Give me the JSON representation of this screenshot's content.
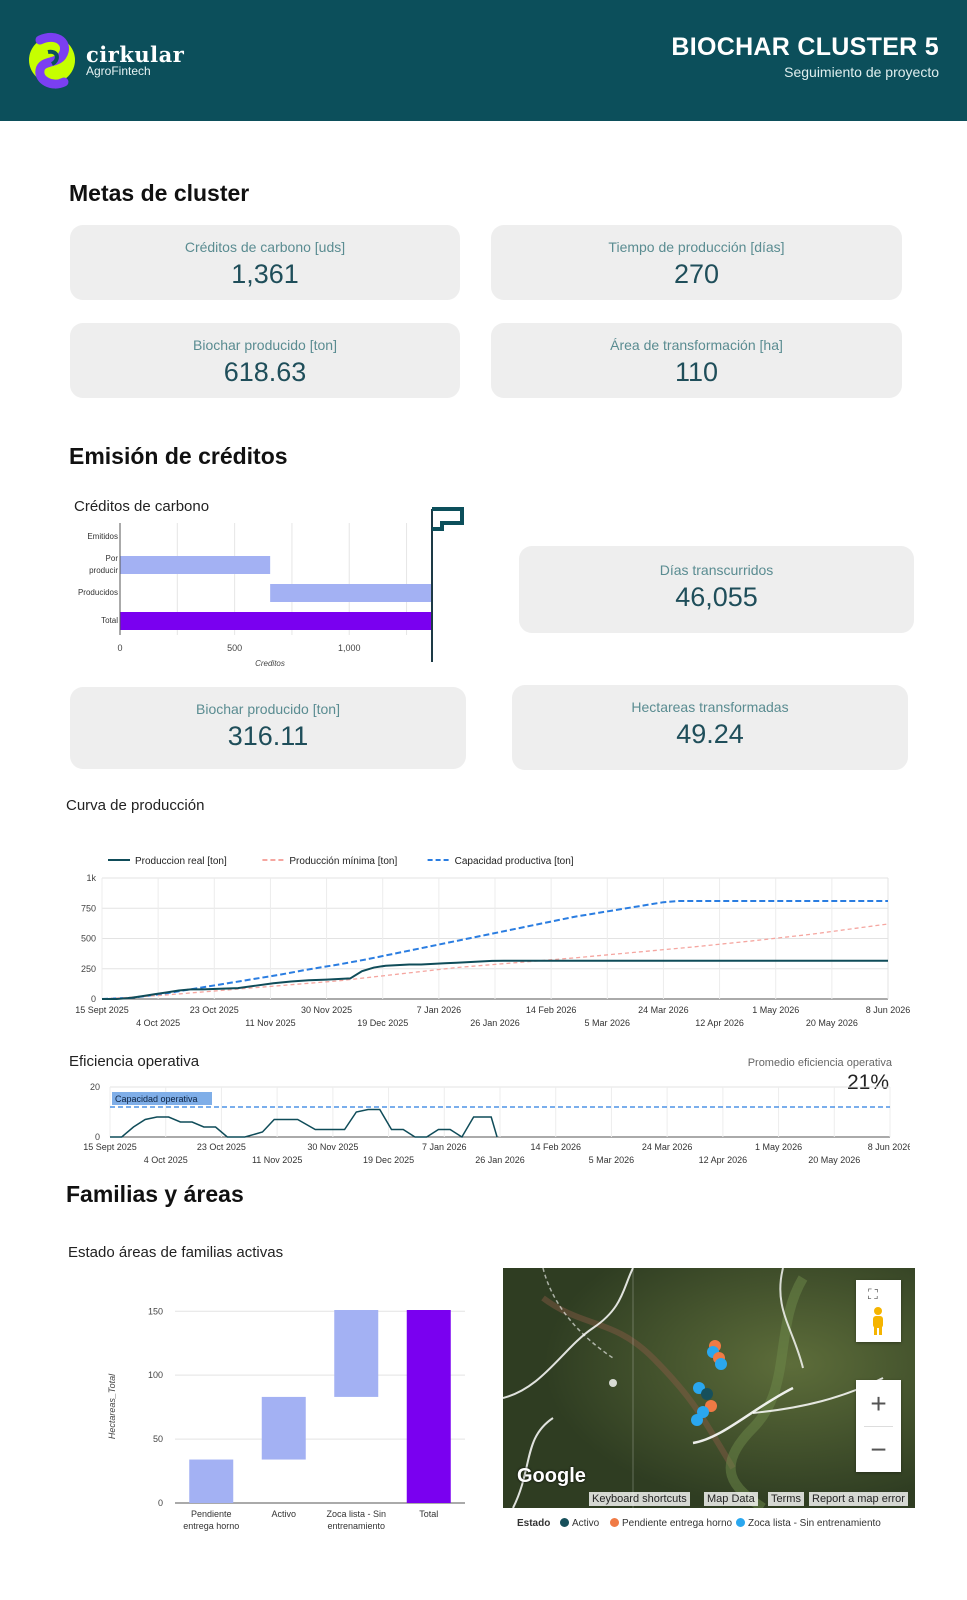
{
  "header": {
    "brand": "cirkular",
    "brand_sub": "AgroFintech",
    "title": "BIOCHAR CLUSTER 5",
    "subtitle": "Seguimiento de proyecto",
    "colors": {
      "bar": "#0c4f5b",
      "logo_green": "#c6ff00",
      "logo_purple": "#7b3ff2"
    }
  },
  "metas": {
    "title": "Metas de cluster",
    "cards": [
      {
        "label": "Créditos de carbono [uds]",
        "value": "1,361"
      },
      {
        "label": "Tiempo de producción [días]",
        "value": "270"
      },
      {
        "label": "Biochar producido [ton]",
        "value": "618.63"
      },
      {
        "label": "Área de transformación [ha]",
        "value": "110"
      }
    ]
  },
  "emision": {
    "title": "Emisión de créditos",
    "chart_title": "Créditos de carbono",
    "cards": [
      {
        "label": "Días transcurridos",
        "value": "46,055"
      },
      {
        "label": "Biochar producido [ton]",
        "value": "316.11"
      },
      {
        "label": "Hectareas transformadas",
        "value": "49.24"
      }
    ],
    "flag_icon": "flag-icon"
  },
  "produccion": {
    "title": "Curva de producción"
  },
  "eficiencia": {
    "title": "Eficiencia operativa",
    "kpi_label": "Promedio eficiencia operativa",
    "kpi_value": "21%"
  },
  "familias": {
    "title": "Familias y áreas",
    "chart_title": "Estado áreas de familias activas",
    "map": {
      "brand": "Google",
      "links": [
        "Keyboard shortcuts",
        "Map Data",
        "Terms",
        "Report a map error"
      ],
      "zoom_in": "+",
      "zoom_out": "−",
      "fullscreen_icon": "fullscreen-icon",
      "pegman_icon": "pegman-icon"
    },
    "legend": {
      "title": "Estado",
      "items": [
        {
          "label": "Activo",
          "color": "#17505b"
        },
        {
          "label": "Pendiente entrega horno",
          "color": "#f07a45"
        },
        {
          "label": "Zoca lista - Sin entrenamiento",
          "color": "#2aa7ef"
        }
      ]
    }
  },
  "chart_data": [
    {
      "type": "bar",
      "orientation": "horizontal",
      "title": "Créditos de carbono",
      "categories": [
        "Emitidos",
        "Por producir",
        "Producidos",
        "Total"
      ],
      "series": [
        {
          "name": "start",
          "values": [
            0,
            0,
            655,
            0
          ]
        },
        {
          "name": "end",
          "values": [
            0,
            655,
            1361,
            1361
          ]
        }
      ],
      "colors": [
        "#a3b1f3",
        "#a3b1f3",
        "#a3b1f3",
        "#7a00f0"
      ],
      "xlabel": "Creditos",
      "xlim": [
        0,
        1361
      ],
      "xticks": [
        "0",
        "500",
        "1,000"
      ],
      "target_marker": 1361
    },
    {
      "type": "line",
      "title": "Curva de producción",
      "ylim": [
        0,
        1000
      ],
      "yticks": [
        "0",
        "250",
        "500",
        "750",
        "1k"
      ],
      "xlim": [
        0,
        266
      ],
      "xticks": [
        {
          "d": 0,
          "label": "15 Sept 2025",
          "row": 1
        },
        {
          "d": 19,
          "label": "4 Oct 2025",
          "row": 2
        },
        {
          "d": 38,
          "label": "23 Oct 2025",
          "row": 1
        },
        {
          "d": 57,
          "label": "11 Nov 2025",
          "row": 2
        },
        {
          "d": 76,
          "label": "30 Nov 2025",
          "row": 1
        },
        {
          "d": 95,
          "label": "19 Dec 2025",
          "row": 2
        },
        {
          "d": 114,
          "label": "7 Jan 2026",
          "row": 1
        },
        {
          "d": 133,
          "label": "26 Jan 2026",
          "row": 2
        },
        {
          "d": 152,
          "label": "14 Feb 2026",
          "row": 1
        },
        {
          "d": 171,
          "label": "5 Mar 2026",
          "row": 2
        },
        {
          "d": 190,
          "label": "24 Mar 2026",
          "row": 1
        },
        {
          "d": 209,
          "label": "12 Apr 2026",
          "row": 2
        },
        {
          "d": 228,
          "label": "1 May 2026",
          "row": 1
        },
        {
          "d": 247,
          "label": "20 May 2026",
          "row": 2
        },
        {
          "d": 266,
          "label": "8 Jun 2026",
          "row": 1
        }
      ],
      "series": [
        {
          "name": "Produccion real [ton]",
          "color": "#0f4c59",
          "style": "solid",
          "x": [
            0,
            5,
            10,
            14,
            18,
            22,
            26,
            30,
            34,
            40,
            46,
            52,
            58,
            64,
            70,
            76,
            80,
            84,
            88,
            92,
            96,
            100,
            104,
            108,
            112,
            116,
            120,
            124,
            128,
            132,
            136,
            140,
            266
          ],
          "y": [
            0,
            0,
            10,
            25,
            40,
            55,
            70,
            80,
            80,
            85,
            90,
            110,
            130,
            145,
            155,
            160,
            165,
            170,
            230,
            260,
            275,
            280,
            285,
            285,
            290,
            295,
            300,
            305,
            310,
            315,
            316,
            316,
            316
          ]
        },
        {
          "name": "Producción mínima [ton]",
          "color": "#f5a6a0",
          "style": "dashed",
          "x": [
            0,
            20,
            40,
            60,
            80,
            100,
            120,
            140,
            160,
            180,
            200,
            220,
            240,
            266
          ],
          "y": [
            0,
            30,
            70,
            110,
            150,
            205,
            260,
            300,
            340,
            385,
            430,
            480,
            535,
            620
          ]
        },
        {
          "name": "Capacidad productiva [ton]",
          "color": "#2a7de1",
          "style": "dashed",
          "x": [
            0,
            10,
            20,
            30,
            40,
            50,
            60,
            70,
            80,
            90,
            100,
            110,
            120,
            130,
            140,
            150,
            160,
            170,
            180,
            190,
            195,
            266
          ],
          "y": [
            0,
            10,
            40,
            80,
            120,
            160,
            200,
            245,
            285,
            330,
            380,
            430,
            480,
            530,
            580,
            630,
            680,
            720,
            760,
            800,
            810,
            810
          ]
        }
      ]
    },
    {
      "type": "line",
      "title": "Eficiencia operativa",
      "ylim": [
        0,
        20
      ],
      "yticks": [
        "0",
        "20"
      ],
      "xlim": [
        0,
        266
      ],
      "threshold": {
        "label": "Capacidad operativa",
        "value": 12,
        "color": "#2a7de1"
      },
      "series": [
        {
          "name": "Eficiencia operativa",
          "color": "#0f4c59",
          "x": [
            0,
            4,
            8,
            12,
            16,
            20,
            24,
            28,
            32,
            36,
            40,
            46,
            52,
            56,
            60,
            64,
            70,
            76,
            80,
            84,
            88,
            92,
            96,
            100,
            104,
            108,
            112,
            116,
            120,
            124,
            128,
            130,
            132
          ],
          "y": [
            0,
            0,
            4,
            7,
            8,
            8,
            6,
            6,
            4,
            4,
            0,
            0,
            2,
            7,
            7,
            7,
            3,
            3,
            3,
            10,
            11,
            11,
            3,
            3,
            0,
            0,
            3,
            3,
            0,
            8,
            8,
            8,
            0
          ]
        }
      ]
    },
    {
      "type": "bar",
      "subtype": "waterfall",
      "title": "Estado áreas de familias activas",
      "categories": [
        "Pendiente entrega horno",
        "Activo",
        "Zoca lista - Sin entrenamiento",
        "Total"
      ],
      "values": [
        34,
        49,
        68,
        151
      ],
      "ylabel": "Hectareas_Total",
      "ylim": [
        0,
        151
      ],
      "yticks": [
        0,
        50,
        100,
        150
      ],
      "colors": [
        "#a3b1f3",
        "#a3b1f3",
        "#a3b1f3",
        "#7a00f0"
      ]
    }
  ]
}
